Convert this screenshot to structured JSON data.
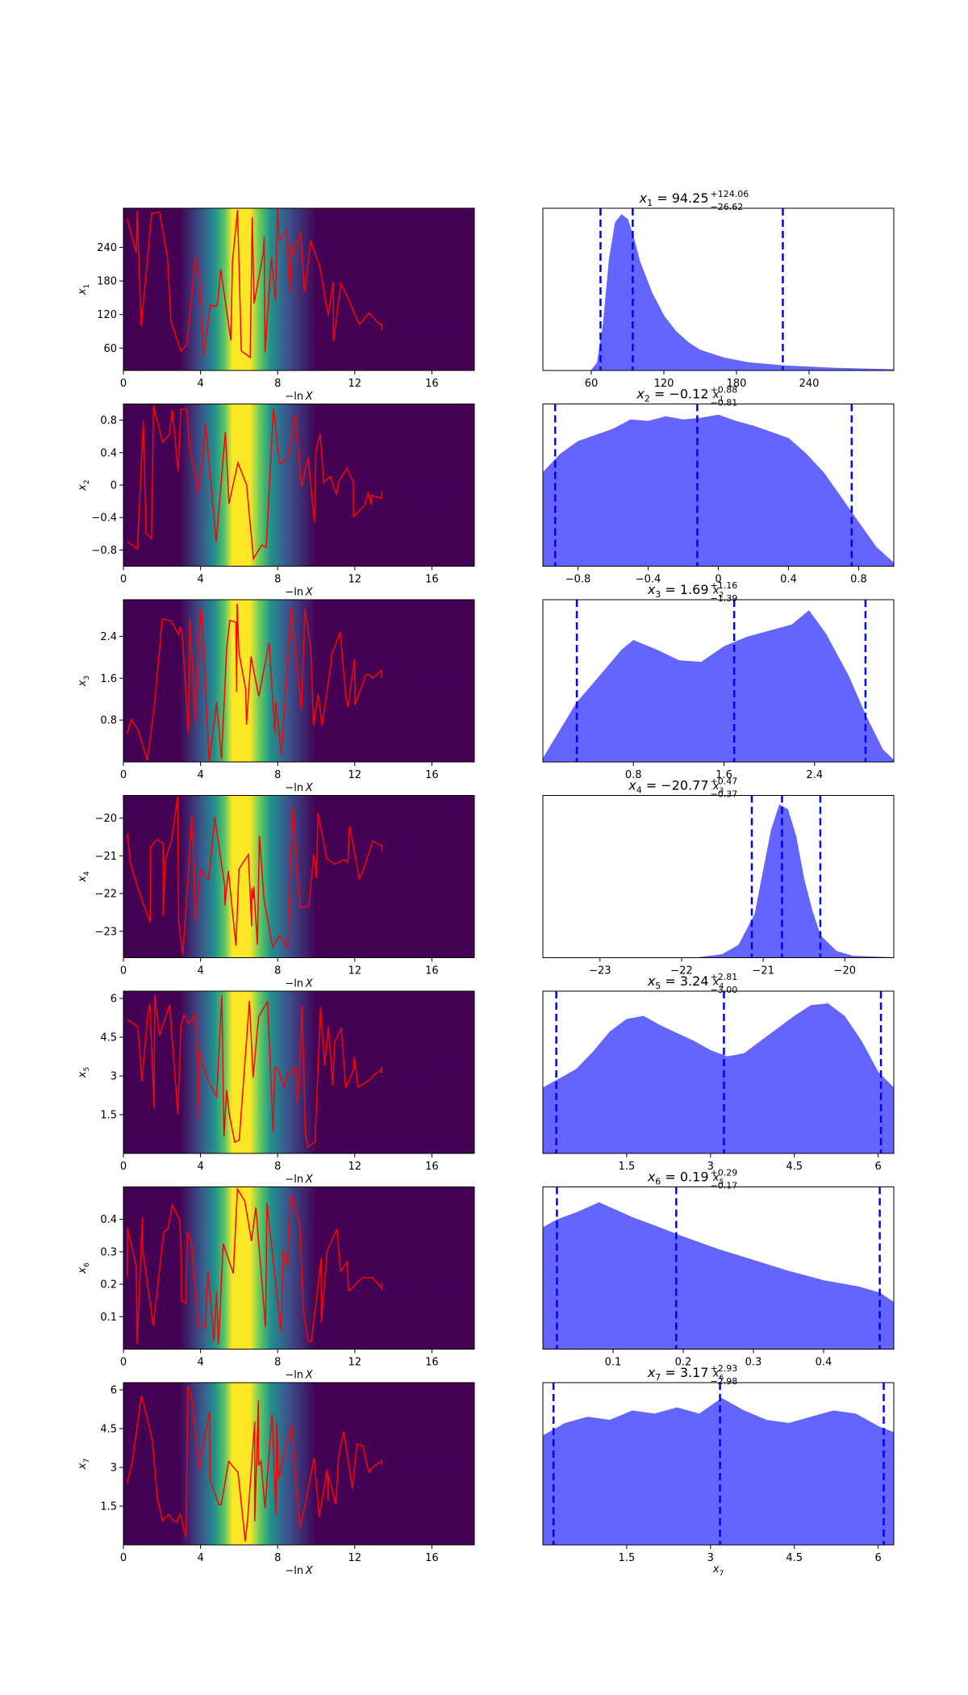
{
  "chart_data": {
    "type": "scatter",
    "colors": {
      "trace_line": "#ff0000",
      "posterior_fill": "#6464ff",
      "quantile_line": "#0000ff",
      "colormap": [
        "#440154",
        "#3b528b",
        "#21918c",
        "#5ec962",
        "#fde725"
      ]
    },
    "trace_x_label_parts": [
      "−ln",
      "X"
    ],
    "trace_x_ticks": [
      0,
      4,
      8,
      12,
      16
    ],
    "trace_x_range": [
      0,
      18.2
    ],
    "params": [
      {
        "symbol": "x",
        "index": "1",
        "title_value": "94.25",
        "err_plus": "+124.06",
        "err_minus": "−26.62",
        "quantiles": [
          67.63,
          94.25,
          218.31
        ],
        "range": [
          20,
          310
        ],
        "trace_y_ticks": [
          60,
          120,
          180,
          240
        ],
        "hist_x_ticks": [
          60,
          120,
          180,
          240
        ],
        "posterior_density": [
          [
            20,
            0
          ],
          [
            60,
            0
          ],
          [
            65,
            0.05
          ],
          [
            70,
            0.3
          ],
          [
            75,
            0.72
          ],
          [
            80,
            0.95
          ],
          [
            85,
            1.0
          ],
          [
            90,
            0.97
          ],
          [
            95,
            0.85
          ],
          [
            100,
            0.7
          ],
          [
            110,
            0.5
          ],
          [
            120,
            0.35
          ],
          [
            130,
            0.25
          ],
          [
            140,
            0.18
          ],
          [
            150,
            0.13
          ],
          [
            170,
            0.08
          ],
          [
            190,
            0.05
          ],
          [
            220,
            0.03
          ],
          [
            260,
            0.015
          ],
          [
            310,
            0.005
          ]
        ]
      },
      {
        "symbol": "x",
        "index": "2",
        "title_value": "−0.12",
        "err_plus": "+0.88",
        "err_minus": "−0.81",
        "quantiles": [
          -0.93,
          -0.12,
          0.76
        ],
        "range": [
          -1.0,
          1.0
        ],
        "trace_y_ticks": [
          -0.8,
          -0.4,
          0.0,
          0.4,
          0.8
        ],
        "hist_x_ticks": [
          -0.8,
          -0.4,
          0.0,
          0.4,
          0.8
        ],
        "posterior_density": [
          [
            -1.0,
            0.6
          ],
          [
            -0.9,
            0.72
          ],
          [
            -0.8,
            0.8
          ],
          [
            -0.6,
            0.88
          ],
          [
            -0.5,
            0.94
          ],
          [
            -0.4,
            0.93
          ],
          [
            -0.3,
            0.96
          ],
          [
            -0.2,
            0.94
          ],
          [
            -0.1,
            0.95
          ],
          [
            0.0,
            0.97
          ],
          [
            0.1,
            0.93
          ],
          [
            0.2,
            0.9
          ],
          [
            0.3,
            0.86
          ],
          [
            0.4,
            0.82
          ],
          [
            0.5,
            0.72
          ],
          [
            0.6,
            0.6
          ],
          [
            0.7,
            0.44
          ],
          [
            0.8,
            0.28
          ],
          [
            0.9,
            0.12
          ],
          [
            1.0,
            0.02
          ]
        ]
      },
      {
        "symbol": "x",
        "index": "3",
        "title_value": "1.69",
        "err_plus": "+1.16",
        "err_minus": "−1.39",
        "quantiles": [
          0.3,
          1.69,
          2.85
        ],
        "range": [
          0.0,
          3.1
        ],
        "trace_y_ticks": [
          0.8,
          1.6,
          2.4
        ],
        "hist_x_ticks": [
          0.8,
          1.6,
          2.4
        ],
        "posterior_density": [
          [
            0.0,
            0.02
          ],
          [
            0.15,
            0.2
          ],
          [
            0.3,
            0.38
          ],
          [
            0.5,
            0.55
          ],
          [
            0.7,
            0.72
          ],
          [
            0.8,
            0.78
          ],
          [
            0.9,
            0.75
          ],
          [
            1.0,
            0.72
          ],
          [
            1.2,
            0.65
          ],
          [
            1.4,
            0.64
          ],
          [
            1.6,
            0.74
          ],
          [
            1.8,
            0.8
          ],
          [
            2.0,
            0.84
          ],
          [
            2.2,
            0.88
          ],
          [
            2.35,
            0.97
          ],
          [
            2.5,
            0.82
          ],
          [
            2.7,
            0.55
          ],
          [
            2.85,
            0.3
          ],
          [
            3.0,
            0.08
          ],
          [
            3.1,
            0.01
          ]
        ]
      },
      {
        "symbol": "x",
        "index": "4",
        "title_value": "−20.77",
        "err_plus": "+0.47",
        "err_minus": "−0.37",
        "quantiles": [
          -21.14,
          -20.77,
          -20.3
        ],
        "range": [
          -23.7,
          -19.4
        ],
        "trace_y_ticks": [
          -23,
          -22,
          -21,
          -20
        ],
        "hist_x_ticks": [
          -23,
          -22,
          -21,
          -20
        ],
        "posterior_density": [
          [
            -23.7,
            0
          ],
          [
            -21.8,
            0
          ],
          [
            -21.5,
            0.02
          ],
          [
            -21.3,
            0.08
          ],
          [
            -21.1,
            0.28
          ],
          [
            -21.0,
            0.55
          ],
          [
            -20.9,
            0.82
          ],
          [
            -20.8,
            0.98
          ],
          [
            -20.7,
            0.95
          ],
          [
            -20.6,
            0.78
          ],
          [
            -20.5,
            0.5
          ],
          [
            -20.4,
            0.3
          ],
          [
            -20.3,
            0.14
          ],
          [
            -20.1,
            0.04
          ],
          [
            -19.9,
            0.01
          ],
          [
            -19.4,
            0
          ]
        ]
      },
      {
        "symbol": "x",
        "index": "5",
        "title_value": "3.24",
        "err_plus": "+2.81",
        "err_minus": "−3.00",
        "quantiles": [
          0.24,
          3.24,
          6.05
        ],
        "range": [
          0.0,
          6.28
        ],
        "trace_y_ticks": [
          1.5,
          3.0,
          4.5,
          6.0
        ],
        "hist_x_ticks": [
          1.5,
          3.0,
          4.5,
          6.0
        ],
        "posterior_density": [
          [
            0.0,
            0.42
          ],
          [
            0.3,
            0.48
          ],
          [
            0.6,
            0.54
          ],
          [
            0.9,
            0.65
          ],
          [
            1.2,
            0.78
          ],
          [
            1.5,
            0.86
          ],
          [
            1.8,
            0.88
          ],
          [
            2.1,
            0.82
          ],
          [
            2.4,
            0.77
          ],
          [
            2.7,
            0.72
          ],
          [
            3.0,
            0.66
          ],
          [
            3.3,
            0.62
          ],
          [
            3.6,
            0.64
          ],
          [
            3.9,
            0.72
          ],
          [
            4.2,
            0.8
          ],
          [
            4.5,
            0.88
          ],
          [
            4.8,
            0.95
          ],
          [
            5.1,
            0.96
          ],
          [
            5.4,
            0.88
          ],
          [
            5.7,
            0.72
          ],
          [
            6.0,
            0.52
          ],
          [
            6.28,
            0.42
          ]
        ]
      },
      {
        "symbol": "x",
        "index": "6",
        "title_value": "0.19",
        "err_plus": "+0.29",
        "err_minus": "−0.17",
        "quantiles": [
          0.02,
          0.19,
          0.48
        ],
        "range": [
          0.0,
          0.5
        ],
        "trace_y_ticks": [
          0.1,
          0.2,
          0.3,
          0.4
        ],
        "hist_x_ticks": [
          0.1,
          0.2,
          0.3,
          0.4
        ],
        "posterior_density": [
          [
            0.0,
            0.78
          ],
          [
            0.02,
            0.83
          ],
          [
            0.05,
            0.88
          ],
          [
            0.08,
            0.94
          ],
          [
            0.1,
            0.9
          ],
          [
            0.13,
            0.84
          ],
          [
            0.16,
            0.79
          ],
          [
            0.2,
            0.72
          ],
          [
            0.25,
            0.64
          ],
          [
            0.3,
            0.57
          ],
          [
            0.35,
            0.5
          ],
          [
            0.4,
            0.44
          ],
          [
            0.45,
            0.4
          ],
          [
            0.48,
            0.36
          ],
          [
            0.5,
            0.3
          ]
        ]
      },
      {
        "symbol": "x",
        "index": "7",
        "title_value": "3.17",
        "err_plus": "+2.93",
        "err_minus": "−2.98",
        "quantiles": [
          0.19,
          3.17,
          6.1
        ],
        "range": [
          0.0,
          6.28
        ],
        "trace_y_ticks": [
          1.5,
          3.0,
          4.5,
          6.0
        ],
        "hist_x_ticks": [
          1.5,
          3.0,
          4.5,
          6.0
        ],
        "posterior_density": [
          [
            0.0,
            0.7
          ],
          [
            0.4,
            0.78
          ],
          [
            0.8,
            0.82
          ],
          [
            1.2,
            0.8
          ],
          [
            1.6,
            0.86
          ],
          [
            2.0,
            0.84
          ],
          [
            2.4,
            0.88
          ],
          [
            2.8,
            0.84
          ],
          [
            3.2,
            0.94
          ],
          [
            3.6,
            0.86
          ],
          [
            4.0,
            0.8
          ],
          [
            4.4,
            0.78
          ],
          [
            4.8,
            0.82
          ],
          [
            5.2,
            0.86
          ],
          [
            5.6,
            0.84
          ],
          [
            6.0,
            0.76
          ],
          [
            6.28,
            0.72
          ]
        ]
      }
    ]
  }
}
